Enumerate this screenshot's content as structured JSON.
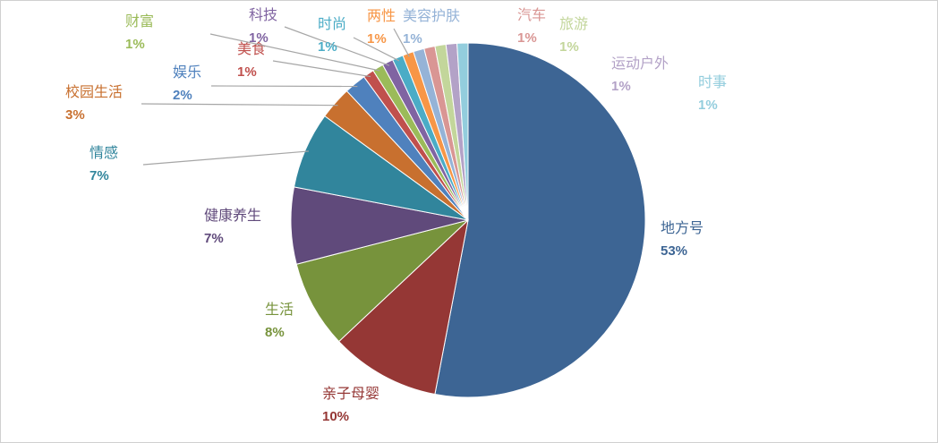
{
  "chart_data": {
    "type": "pie",
    "categories": [
      "地方号",
      "亲子母婴",
      "生活",
      "健康养生",
      "情感",
      "校园生活",
      "娱乐",
      "美食",
      "财富",
      "科技",
      "时尚",
      "两性",
      "美容护肤",
      "汽车",
      "旅游",
      "运动户外",
      "时事"
    ],
    "values": [
      53,
      10,
      8,
      7,
      7,
      3,
      2,
      1,
      1,
      1,
      1,
      1,
      1,
      1,
      1,
      1,
      1
    ],
    "value_labels": [
      "53%",
      "10%",
      "8%",
      "7%",
      "7%",
      "3%",
      "2%",
      "1%",
      "1%",
      "1%",
      "1%",
      "1%",
      "1%",
      "1%",
      "1%",
      "1%",
      "1%"
    ],
    "colors": [
      "#3d6594",
      "#953735",
      "#77933c",
      "#604a7b",
      "#31859c",
      "#c8702f",
      "#4f81bd",
      "#c0504d",
      "#9bbb59",
      "#8064a2",
      "#4bacc6",
      "#f79646",
      "#95b3d7",
      "#d99694",
      "#c3d69b",
      "#b3a2c7",
      "#93cddd"
    ]
  }
}
